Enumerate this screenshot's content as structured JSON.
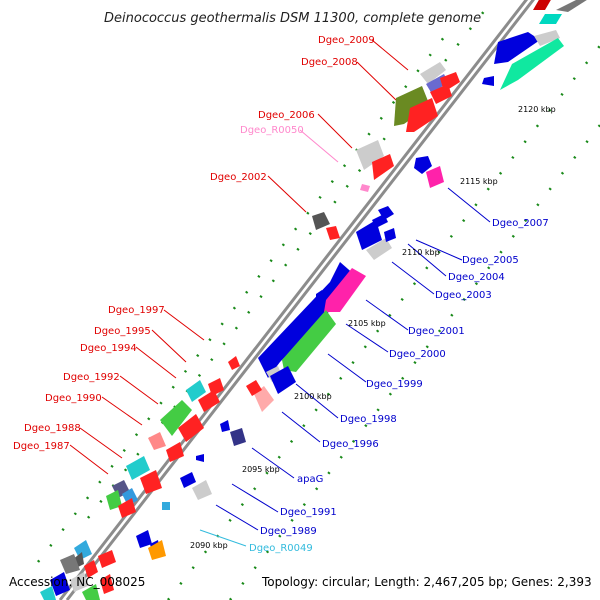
{
  "title": "Deinococcus geothermalis DSM 11300, complete genome",
  "accession": "Accession: NC_008025",
  "topology": "Topology: circular; Length: 2,467,205 bp; Genes: 2,393",
  "colors": {
    "backbone": "#8c8c8c",
    "forward_label": "#e00000",
    "reverse_label": "#0000cc",
    "rna_forward_label": "#ff88cc",
    "rna_reverse_label": "#33bbdd",
    "grid": "#1a8a1a"
  },
  "ticks": [
    "2090 kbp",
    "2095 kbp",
    "2100 kbp",
    "2105 kbp",
    "2110 kbp",
    "2115 kbp",
    "2120 kbp"
  ],
  "left_labels": [
    "Dgeo_2009",
    "Dgeo_2008",
    "Dgeo_2006",
    "Dgeo_R0050",
    "Dgeo_2002",
    "Dgeo_1997",
    "Dgeo_1995",
    "Dgeo_1994",
    "Dgeo_1992",
    "Dgeo_1990",
    "Dgeo_1988",
    "Dgeo_1987"
  ],
  "right_labels": [
    "Dgeo_2007",
    "Dgeo_2005",
    "Dgeo_2004",
    "Dgeo_2003",
    "Dgeo_2001",
    "Dgeo_2000",
    "Dgeo_1999",
    "Dgeo_1998",
    "Dgeo_1996",
    "apaG",
    "Dgeo_1991",
    "Dgeo_1989",
    "Dgeo_R0049"
  ]
}
